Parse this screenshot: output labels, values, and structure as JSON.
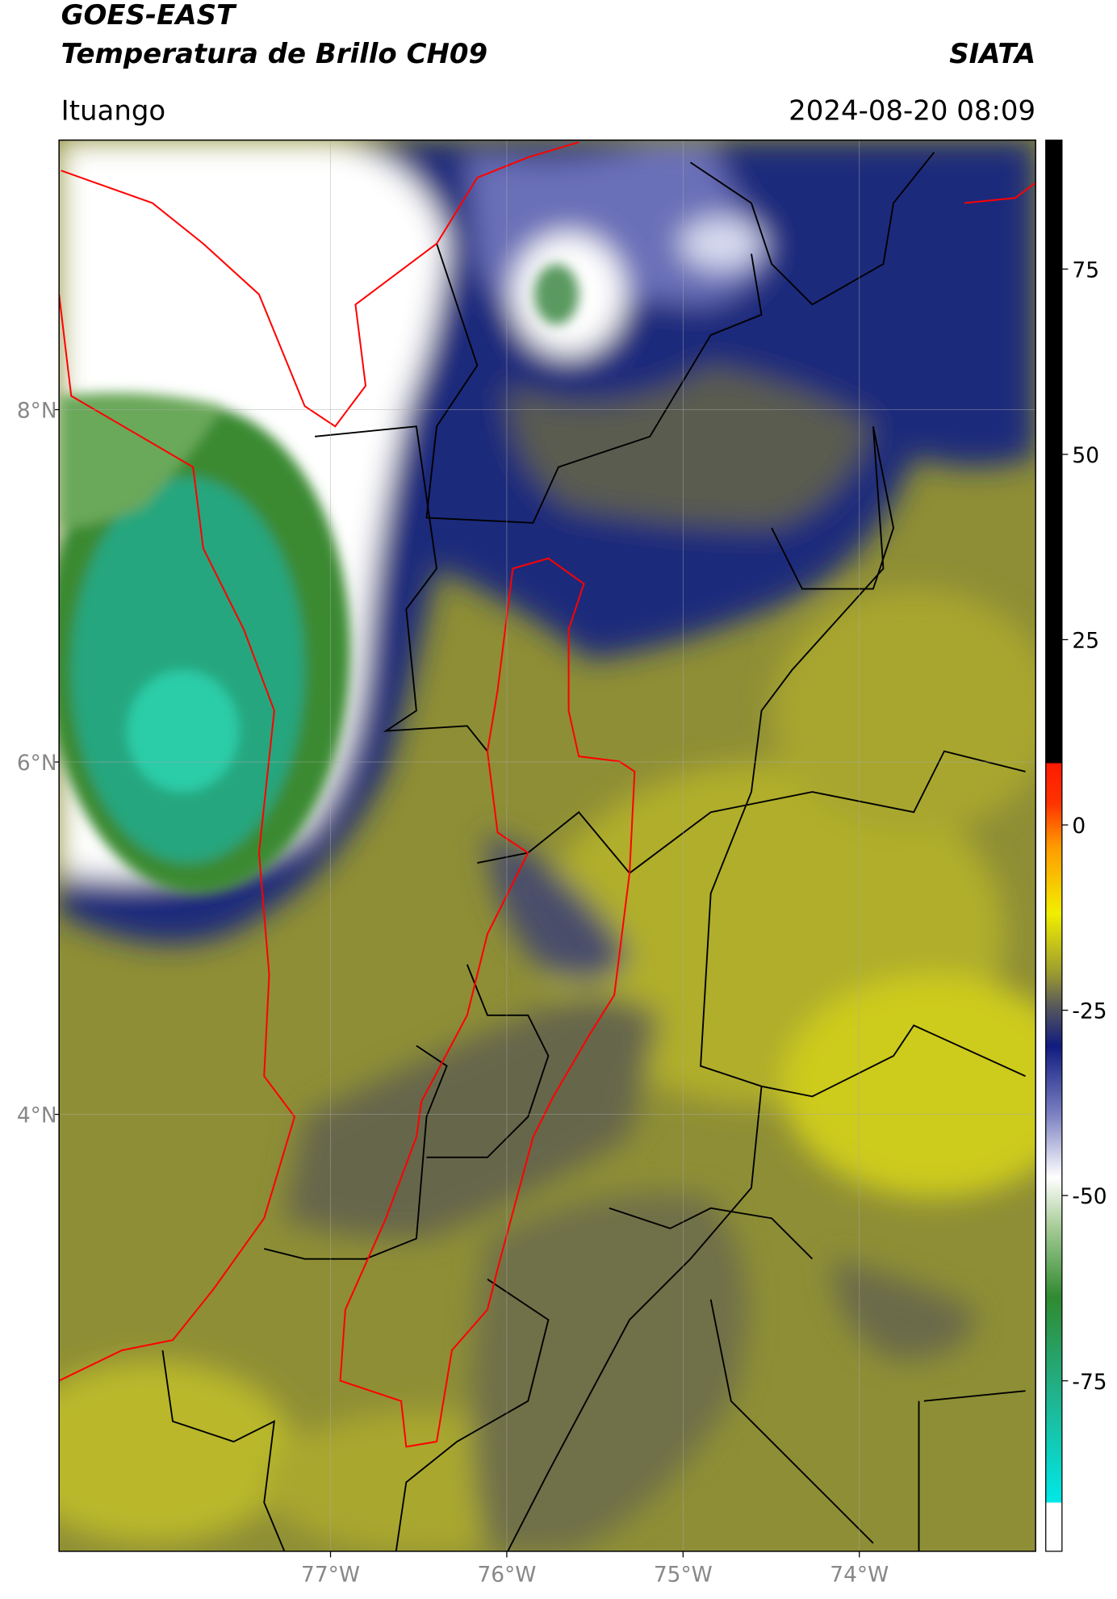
{
  "header": {
    "title": "GOES-EAST",
    "subtitle": "Temperatura de Brillo CH09",
    "source": "SIATA",
    "location": "Ituango",
    "datetime": "2024-08-20 08:09"
  },
  "map": {
    "xlim": [
      -78.54,
      -73.0
    ],
    "ylim": [
      1.52,
      9.53
    ],
    "xticks": [
      {
        "value": -77,
        "label": "77°W"
      },
      {
        "value": -76,
        "label": "76°W"
      },
      {
        "value": -75,
        "label": "75°W"
      },
      {
        "value": -74,
        "label": "74°W"
      }
    ],
    "yticks": [
      {
        "value": 8,
        "label": "8°N"
      },
      {
        "value": 6,
        "label": "6°N"
      },
      {
        "value": 4,
        "label": "4°N"
      }
    ],
    "grid": true
  },
  "colorbar": {
    "lim": [
      -98,
      92.4
    ],
    "ticks": [
      75,
      50,
      25,
      0,
      -25,
      -50,
      -75
    ]
  }
}
